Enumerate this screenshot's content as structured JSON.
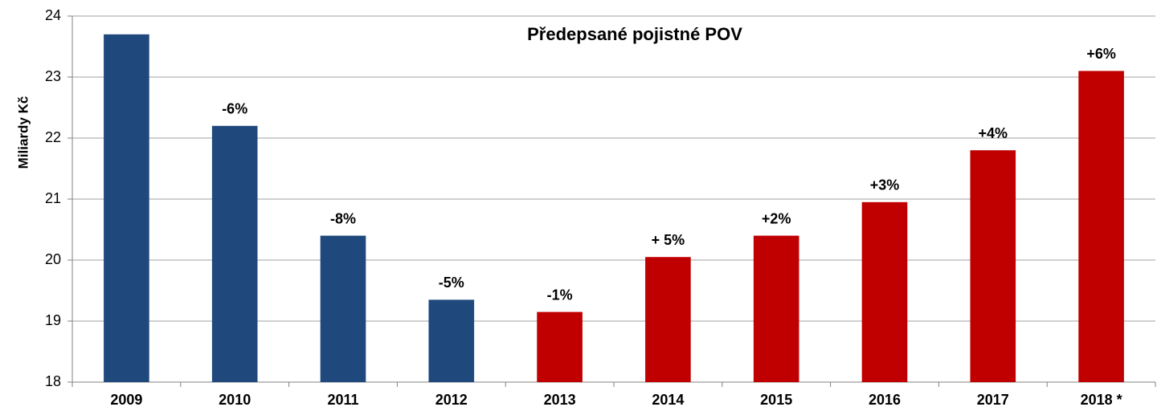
{
  "chart_data": {
    "type": "bar",
    "title": "Předepsané pojistné POV",
    "y_label": "Miliardy Kč",
    "categories": [
      "2009",
      "2010",
      "2011",
      "2012",
      "2013",
      "2014",
      "2015",
      "2016",
      "2017",
      "2018 *"
    ],
    "values": [
      23.7,
      22.2,
      20.4,
      19.35,
      19.15,
      20.05,
      20.4,
      20.95,
      21.8,
      23.1
    ],
    "colors": [
      "#1f497d",
      "#1f497d",
      "#1f497d",
      "#1f497d",
      "#c00000",
      "#c00000",
      "#c00000",
      "#c00000",
      "#c00000",
      "#c00000"
    ],
    "annotations": [
      null,
      "-6%",
      "-8%",
      "-5%",
      "-1%",
      "+ 5%",
      "+2%",
      "+3%",
      "+4%",
      "+6%"
    ],
    "ylim": [
      18,
      24
    ],
    "yticks": [
      18,
      19,
      20,
      21,
      22,
      23,
      24
    ],
    "grid": true
  }
}
